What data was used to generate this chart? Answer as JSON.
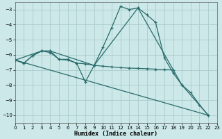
{
  "xlabel": "Humidex (Indice chaleur)",
  "bg_color": "#cce8e8",
  "grid_color": "#aacccc",
  "line_color": "#2a6b6b",
  "xlim": [
    0,
    23
  ],
  "ylim": [
    -10.5,
    -2.5
  ],
  "yticks": [
    -10,
    -9,
    -8,
    -7,
    -6,
    -5,
    -4,
    -3
  ],
  "xticks": [
    0,
    1,
    2,
    3,
    4,
    5,
    6,
    7,
    8,
    9,
    10,
    11,
    12,
    13,
    14,
    15,
    16,
    17,
    18,
    19,
    20,
    21,
    22,
    23
  ],
  "curve1_x": [
    0,
    1,
    2,
    3,
    4,
    5,
    6,
    7,
    8,
    9,
    10,
    11,
    12,
    13,
    14,
    15,
    16,
    17,
    18,
    19,
    20,
    21,
    22
  ],
  "curve1_y": [
    -6.35,
    -6.55,
    -6.05,
    -5.75,
    -5.75,
    -6.3,
    -6.3,
    -6.55,
    -7.8,
    -6.7,
    -5.5,
    -4.2,
    -2.8,
    -3.0,
    -2.9,
    -3.35,
    -3.85,
    -6.2,
    -7.2,
    -8.0,
    -8.5,
    -9.3,
    -10.0
  ],
  "curve2_x": [
    0,
    1,
    2,
    3,
    4,
    5,
    6,
    7,
    8,
    9,
    10,
    11,
    12,
    13,
    14,
    15,
    16,
    17,
    18
  ],
  "curve2_y": [
    -6.35,
    -6.55,
    -6.05,
    -5.75,
    -5.85,
    -6.3,
    -6.35,
    -6.55,
    -6.6,
    -6.7,
    -6.75,
    -6.8,
    -6.85,
    -6.88,
    -6.9,
    -6.92,
    -6.95,
    -6.97,
    -7.0
  ],
  "curve3_x": [
    0,
    3,
    4,
    9,
    14,
    19,
    22
  ],
  "curve3_y": [
    -6.35,
    -5.75,
    -5.75,
    -6.7,
    -2.9,
    -8.0,
    -10.0
  ],
  "curve4_x": [
    0,
    22
  ],
  "curve4_y": [
    -6.35,
    -10.0
  ]
}
